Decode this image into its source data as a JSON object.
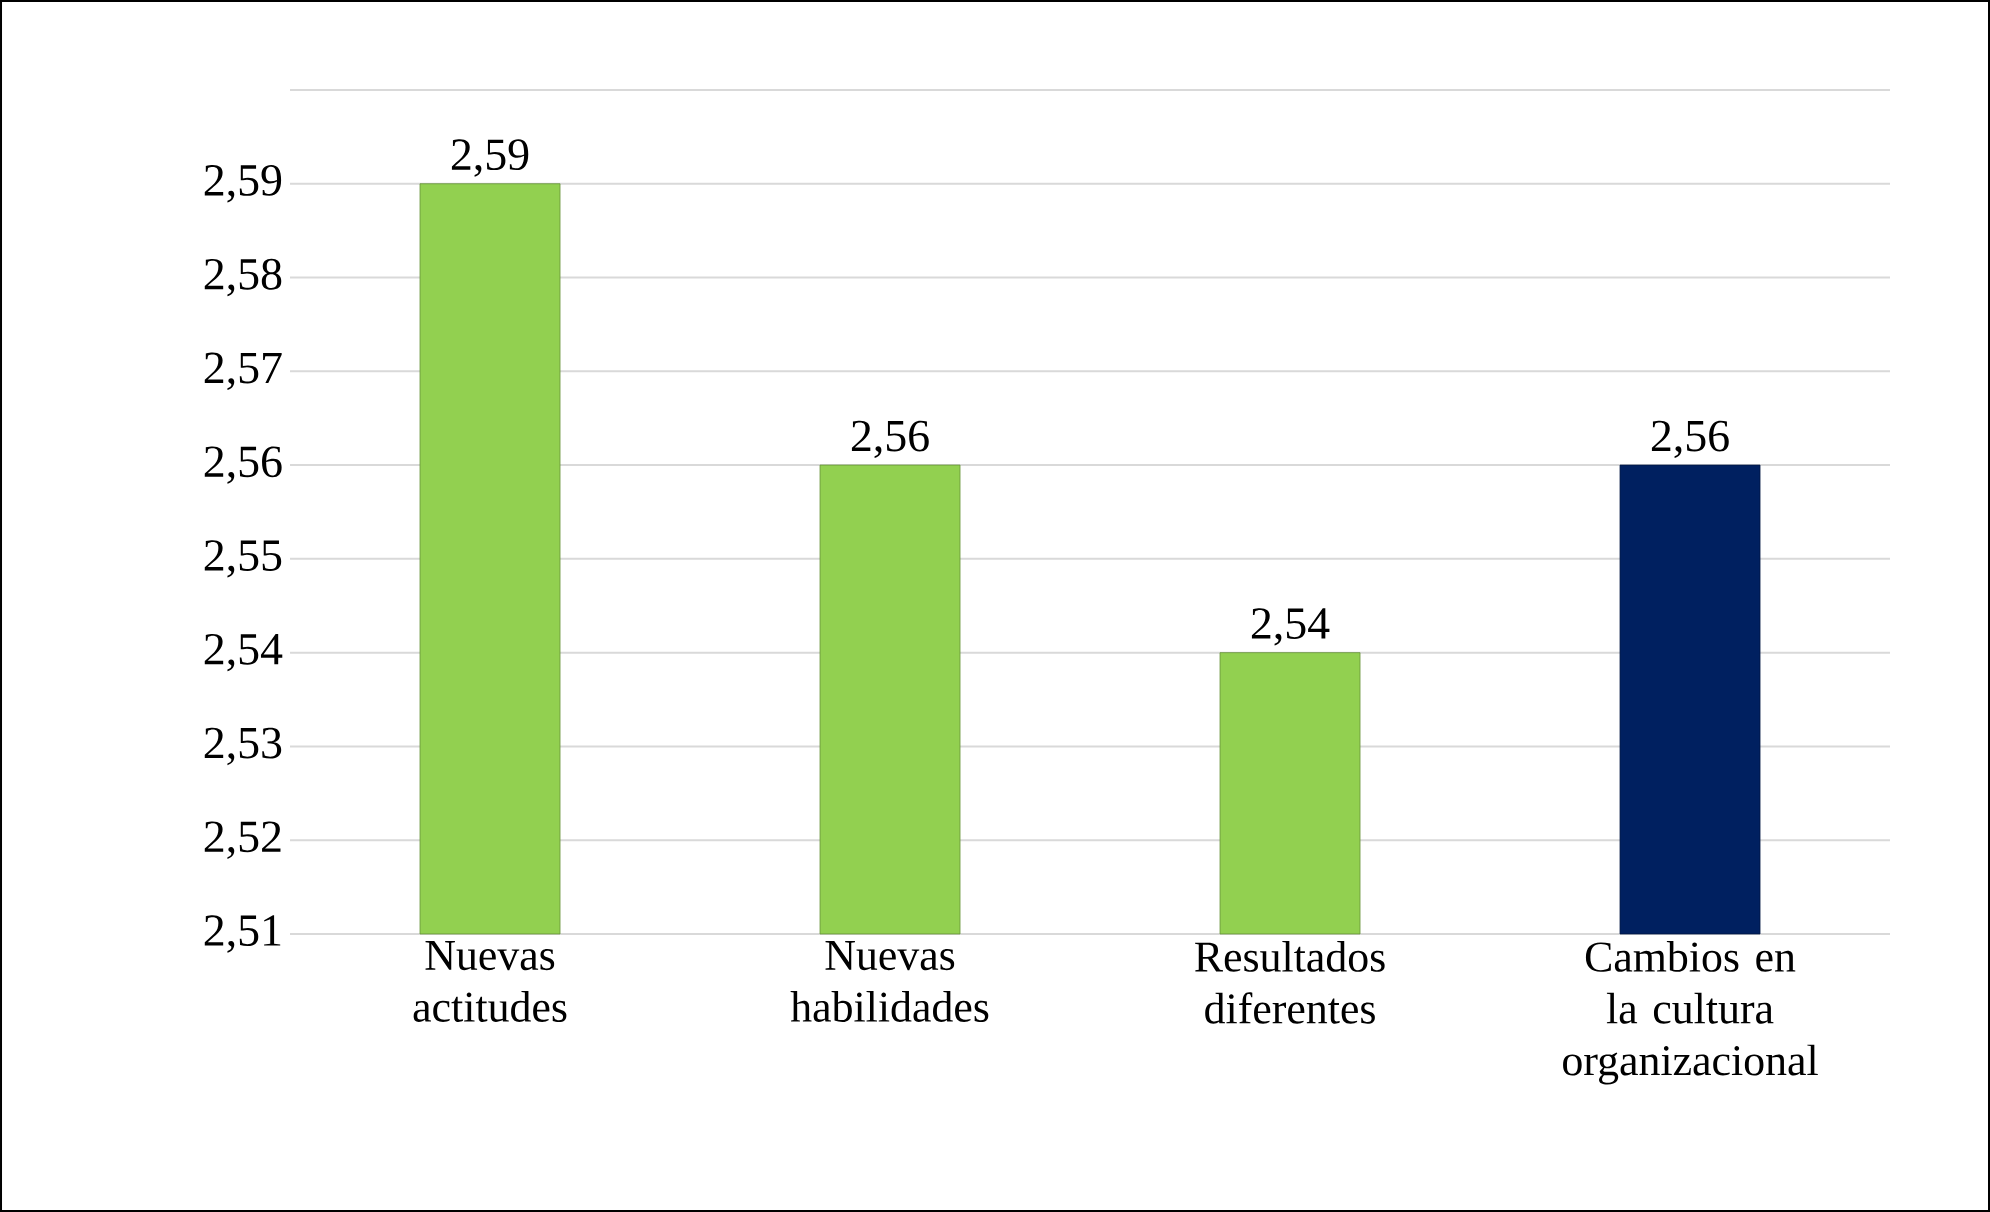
{
  "chart_data": {
    "type": "bar",
    "categories": [
      "Nuevas actitudes",
      "Nuevas habilidades",
      "Resultados diferentes",
      "Cambios en la cultura organizacional"
    ],
    "values": [
      2.59,
      2.56,
      2.54,
      2.56
    ],
    "colors": [
      "#92d050",
      "#92d050",
      "#92d050",
      "#002060"
    ],
    "value_labels": [
      "2,59",
      "2,56",
      "2,54",
      "2,56"
    ],
    "ylim": [
      2.51,
      2.6
    ],
    "yticks": [
      {
        "value": 2.51,
        "label": "2,51"
      },
      {
        "value": 2.52,
        "label": "2,52"
      },
      {
        "value": 2.53,
        "label": "2,53"
      },
      {
        "value": 2.54,
        "label": "2,54"
      },
      {
        "value": 2.55,
        "label": "2,55"
      },
      {
        "value": 2.56,
        "label": "2,56"
      },
      {
        "value": 2.57,
        "label": "2,57"
      },
      {
        "value": 2.58,
        "label": "2,58"
      },
      {
        "value": 2.59,
        "label": "2,59"
      },
      {
        "value": 2.6,
        "label": null
      }
    ],
    "grid": "y"
  }
}
